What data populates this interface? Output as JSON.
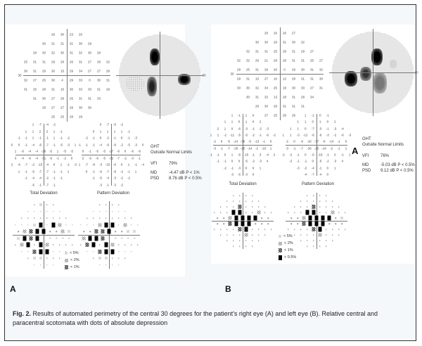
{
  "panels": [
    {
      "id": "A",
      "label": "A",
      "threshold": [
        [
          29,
          30,
          23,
          25
        ],
        [
          30,
          31,
          31,
          31,
          30,
          29
        ],
        [
          29,
          30,
          32,
          30,
          31,
          32,
          30,
          29
        ],
        [
          25,
          31,
          31,
          29,
          29,
          26,
          31,
          27,
          29,
          32
        ],
        [
          30,
          31,
          29,
          30,
          15,
          29,
          34,
          27,
          27,
          28
        ],
        [
          32,
          27,
          25,
          30,
          4,
          29,
          33,
          0,
          30,
          31
        ],
        [
          31,
          25,
          28,
          31,
          15,
          30,
          33,
          33,
          31,
          29
        ],
        [
          31,
          30,
          27,
          28,
          25,
          31,
          31,
          33
        ],
        [
          29,
          27,
          27,
          29,
          30,
          30
        ],
        [
          25,
          25,
          28,
          29
        ]
      ],
      "total_deviation": [
        [
          "1",
          "-7",
          "-4",
          "-2"
        ],
        [
          "1",
          "1",
          "2",
          "2",
          "1",
          "-1"
        ],
        [
          "-1",
          "-1",
          "1",
          "-1",
          "-1",
          "1",
          "-1",
          "-2"
        ],
        [
          "0",
          "0",
          "-1",
          "-4",
          "-6",
          "-7",
          "-1",
          "-5",
          "-3",
          "1"
        ],
        [
          "1",
          "-6",
          "-4",
          "-4",
          "-26",
          "-5",
          "1",
          "-5",
          "-5"
        ],
        [
          "3",
          "-4",
          "-6",
          "-4",
          "-31",
          "-5",
          "-1",
          "-2",
          "0"
        ],
        [
          "2",
          "-6",
          "-7",
          "-2",
          "-15",
          "-4",
          "0",
          "1",
          "-1",
          "-3"
        ],
        [
          "1",
          "-1",
          "-5",
          "-7",
          "-7",
          "-1",
          "-1",
          "1"
        ],
        [
          "-1",
          "-4",
          "-4",
          "-2",
          "-1",
          "-1"
        ],
        [
          "-5",
          "-1",
          "-7",
          "-1"
        ]
      ],
      "pattern_deviation": [
        [
          "0",
          "-7",
          "-5",
          "-2"
        ],
        [
          "0",
          "1",
          "1",
          "1",
          "1",
          "-1"
        ],
        [
          "-2",
          "-1",
          "0",
          "-2",
          "-1",
          "0",
          "-1",
          "-3"
        ],
        [
          "-1",
          "-1",
          "-1",
          "-4",
          "-6",
          "-8",
          "-2",
          "-5",
          "-3",
          "0"
        ],
        [
          "0",
          "-1",
          "-5",
          "-5",
          "-27",
          "-6",
          "0",
          "-6",
          "-6"
        ],
        [
          "2",
          "-5",
          "-6",
          "-5",
          "-32",
          "-7",
          "-2",
          "-3",
          "-1"
        ],
        [
          "1",
          "-7",
          "-8",
          "-3",
          "-15",
          "-6",
          "0",
          "1",
          "-1",
          "-4"
        ],
        [
          "0",
          "-1",
          "-6",
          "-7",
          "-8",
          "-2",
          "-1",
          "1"
        ],
        [
          "-1",
          "-5",
          "-4",
          "-3",
          "-2",
          "-2"
        ],
        [
          "-3",
          "-1",
          "-3",
          "-2"
        ]
      ],
      "total_probability": [
        ".a..",
        "......",
        "........",
        "...ad.db..",
        ".bcdd..ba",
        "adcd.....",
        ".bd.db....",
        "..cdd...",
        ".aa...",
        "...."
      ],
      "pattern_probability": [
        "....",
        "......",
        "........",
        "...bdd.b..",
        "..ccd..aa",
        "bddc.....",
        ".cd.db....",
        "..cdd...",
        ".aa...",
        "...."
      ],
      "total_deviation_label": "Total Deviation",
      "pattern_deviation_label": "Pattern Deviation",
      "ght_label": "GHT",
      "ght_value": "Outside Normal Limits",
      "vfi_label": "VFI",
      "vfi_value": "79%",
      "md_label": "MD",
      "md_value": "-4.47 dB  P < 1%",
      "psd_label": "PSD",
      "psd_value": "8.76 dB  P < 0.5%",
      "axis_label": "30",
      "legend": [
        {
          "symbol": "a",
          "text": "< 5%"
        },
        {
          "symbol": "b",
          "text": "< 2%"
        },
        {
          "symbol": "c",
          "text": "< 1%"
        }
      ]
    },
    {
      "id": "B",
      "label": "B",
      "threshold": [
        [
          29,
          26,
          26,
          27
        ],
        [
          30,
          30,
          29,
          31,
          30,
          32
        ],
        [
          32,
          31,
          31,
          25,
          29,
          31,
          29,
          27
        ],
        [
          32,
          32,
          29,
          21,
          28,
          26,
          31,
          31,
          25,
          27
        ],
        [
          29,
          25,
          31,
          29,
          20,
          0,
          29,
          30,
          31,
          32
        ],
        [
          29,
          31,
          15,
          27,
          10,
          12,
          28,
          31,
          31,
          30
        ],
        [
          30,
          30,
          32,
          34,
          25,
          18,
          30,
          33,
          27,
          31
        ],
        [
          30,
          31,
          32,
          13,
          28,
          31,
          28,
          34
        ],
        [
          29,
          30,
          28,
          31,
          31,
          31
        ],
        [
          27,
          25,
          26,
          26
        ]
      ],
      "total_deviation": [
        [
          "1",
          "-1",
          "1",
          "0"
        ],
        [
          "1",
          "1",
          "0",
          "1",
          "0",
          "2"
        ],
        [
          "2",
          "1",
          "0",
          "-6",
          "-3",
          "-1",
          "-2",
          "-3"
        ],
        [
          "1",
          "1",
          "-2",
          "-11",
          "-5",
          "-5",
          "-2",
          "-1",
          "-6",
          "-2"
        ],
        [
          "-2",
          "0",
          "-5",
          "-14",
          "-36",
          "-5",
          "-13",
          "-1",
          "0"
        ],
        [
          "-3",
          "-1",
          "-7",
          "-26",
          "-25",
          "-14",
          "-2",
          "-10",
          "1"
        ],
        [
          "-1",
          "-1",
          "0",
          "1",
          "-6",
          "-15",
          "-1",
          "3",
          "-4",
          "2"
        ],
        [
          "-1",
          "-1",
          "0",
          "0",
          "-5",
          "-2",
          "-3",
          "4"
        ],
        [
          "-2",
          "-1",
          "-3",
          "0",
          "0",
          "1"
        ],
        [
          "-3",
          "-6",
          "-3",
          "0"
        ]
      ],
      "pattern_deviation": [
        [
          "1",
          "-1",
          "0",
          "-1"
        ],
        [
          "1",
          "1",
          "0",
          "1",
          "0",
          "2"
        ],
        [
          "1",
          "1",
          "0",
          "-7",
          "-3",
          "-1",
          "-3",
          "-4"
        ],
        [
          "1",
          "1",
          "-3",
          "-12",
          "-6",
          "-6",
          "-3",
          "-2",
          "-6",
          "-3"
        ],
        [
          "-2",
          "0",
          "-6",
          "-16",
          "-37",
          "-6",
          "-14",
          "-1",
          "0"
        ],
        [
          "-3",
          "-1",
          "-7",
          "-26",
          "-25",
          "-14",
          "-2",
          "-1",
          "1"
        ],
        [
          "-2",
          "-2",
          "-1",
          "0",
          "-6",
          "-16",
          "-1",
          "0",
          "-1",
          "1"
        ],
        [
          "-2",
          "-1",
          "-1",
          "0",
          "-5",
          "-2",
          "-3",
          "4"
        ],
        [
          "-3",
          "-2",
          "-4",
          "-1",
          "0",
          "1"
        ],
        [
          "-4",
          "-7",
          "-4",
          "0"
        ]
      ],
      "total_probability": [
        "....",
        "......",
        "...c....",
        "...dd..b..",
        "..bdddd..",
        "..cddd...",
        "....cd....",
        "....b...",
        "......",
        "...."
      ],
      "pattern_probability": [
        "....",
        "......",
        "...c....",
        "...dd..b..",
        "..bdddd.a",
        "..cddd...",
        "....cd....",
        "....b...",
        "......",
        "...."
      ],
      "total_deviation_label": "Total Deviation",
      "pattern_deviation_label": "Pattern Deviation",
      "ght_label": "GHT",
      "ght_value": "Outside Normal Limits",
      "vfi_label": "VFI",
      "vfi_value": "76%",
      "md_label": "MD",
      "md_value": "-5.03 dB  P < 0.5%",
      "psd_label": "PSD",
      "psd_value": "9.12 dB  P < 0.5%",
      "axis_label": "30",
      "overlay_letter": "A",
      "legend": [
        {
          "symbol": "a",
          "text": "< 5%"
        },
        {
          "symbol": "b",
          "text": "< 2%"
        },
        {
          "symbol": "c",
          "text": "< 1%"
        },
        {
          "symbol": "d",
          "text": "< 0.5%"
        }
      ]
    }
  ],
  "caption": {
    "prefix": "Fig. 2.",
    "text": " Results of automated perimetry of the central 30 degrees for the patient's right eye (A) and left eye (B). Relative central and paracentral scotomata with dots of absolute depression"
  }
}
